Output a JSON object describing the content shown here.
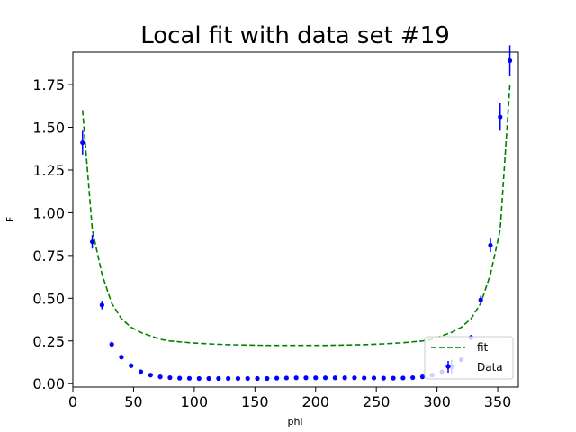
{
  "chart_data": {
    "type": "scatter",
    "title": "Local fit with data set #19",
    "xlabel": "phi",
    "ylabel": "F",
    "xlim": [
      0,
      367
    ],
    "ylim": [
      -0.02,
      1.94
    ],
    "x_ticks": [
      0,
      50,
      100,
      150,
      200,
      250,
      300,
      350
    ],
    "y_ticks": [
      0.0,
      0.25,
      0.5,
      0.75,
      1.0,
      1.25,
      1.5,
      1.75
    ],
    "x_tick_labels": [
      "0",
      "50",
      "100",
      "150",
      "200",
      "250",
      "300",
      "350"
    ],
    "y_tick_labels": [
      "0.00",
      "0.25",
      "0.50",
      "0.75",
      "1.00",
      "1.25",
      "1.50",
      "1.75"
    ],
    "grid": false,
    "legend_position": "lower right",
    "series": [
      {
        "name": "fit",
        "style": "dashed-line",
        "color": "#008000",
        "x": [
          8,
          16,
          24,
          32,
          40,
          48,
          56,
          64,
          72,
          80,
          96,
          112,
          128,
          144,
          160,
          176,
          192,
          208,
          224,
          240,
          256,
          272,
          288,
          296,
          304,
          312,
          320,
          328,
          336,
          344,
          352,
          360
        ],
        "y": [
          1.6,
          0.9,
          0.64,
          0.47,
          0.38,
          0.33,
          0.3,
          0.28,
          0.26,
          0.25,
          0.24,
          0.233,
          0.228,
          0.226,
          0.224,
          0.224,
          0.224,
          0.224,
          0.226,
          0.228,
          0.233,
          0.24,
          0.25,
          0.26,
          0.28,
          0.3,
          0.33,
          0.38,
          0.47,
          0.64,
          0.9,
          1.75
        ]
      },
      {
        "name": "Data",
        "style": "errorbar-points",
        "color": "#0000ff",
        "x": [
          8,
          16,
          24,
          32,
          40,
          48,
          56,
          64,
          72,
          80,
          88,
          96,
          104,
          112,
          120,
          128,
          136,
          144,
          152,
          160,
          168,
          176,
          184,
          192,
          200,
          208,
          216,
          224,
          232,
          240,
          248,
          256,
          264,
          272,
          280,
          288,
          296,
          304,
          312,
          320,
          328,
          336,
          344,
          352,
          360
        ],
        "y": [
          1.41,
          0.83,
          0.46,
          0.23,
          0.155,
          0.105,
          0.07,
          0.05,
          0.04,
          0.035,
          0.032,
          0.031,
          0.03,
          0.03,
          0.03,
          0.03,
          0.03,
          0.03,
          0.03,
          0.03,
          0.032,
          0.033,
          0.034,
          0.034,
          0.034,
          0.034,
          0.034,
          0.034,
          0.034,
          0.033,
          0.033,
          0.032,
          0.032,
          0.033,
          0.035,
          0.04,
          0.05,
          0.07,
          0.1,
          0.14,
          0.27,
          0.49,
          0.81,
          1.56,
          1.89
        ],
        "yerr": [
          0.07,
          0.04,
          0.025,
          0.015,
          0.01,
          0.008,
          0.006,
          0.005,
          0.004,
          0.004,
          0.004,
          0.004,
          0.004,
          0.004,
          0.004,
          0.004,
          0.004,
          0.004,
          0.004,
          0.004,
          0.004,
          0.004,
          0.004,
          0.004,
          0.004,
          0.004,
          0.004,
          0.004,
          0.004,
          0.004,
          0.004,
          0.004,
          0.004,
          0.004,
          0.004,
          0.004,
          0.005,
          0.006,
          0.04,
          0.01,
          0.015,
          0.025,
          0.04,
          0.08,
          0.09
        ]
      }
    ]
  }
}
